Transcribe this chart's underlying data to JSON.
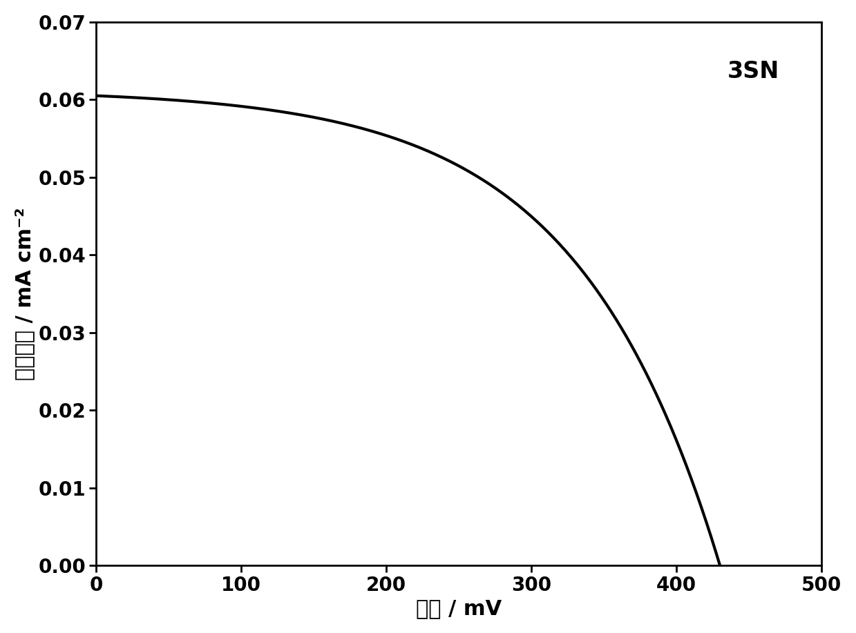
{
  "label": "3SN",
  "xlabel": "电压 / mV",
  "ylabel": "电流密度 / mA cm⁻²",
  "xlim": [
    0,
    500
  ],
  "ylim": [
    0.0,
    0.07
  ],
  "xticks": [
    0,
    100,
    200,
    300,
    400,
    500
  ],
  "yticks": [
    0.0,
    0.01,
    0.02,
    0.03,
    0.04,
    0.05,
    0.06,
    0.07
  ],
  "line_color": "#000000",
  "line_width": 3.0,
  "jsc": 0.0605,
  "voc": 430,
  "background_color": "#ffffff",
  "label_fontsize": 22,
  "tick_fontsize": 20,
  "annotation_fontsize": 24
}
